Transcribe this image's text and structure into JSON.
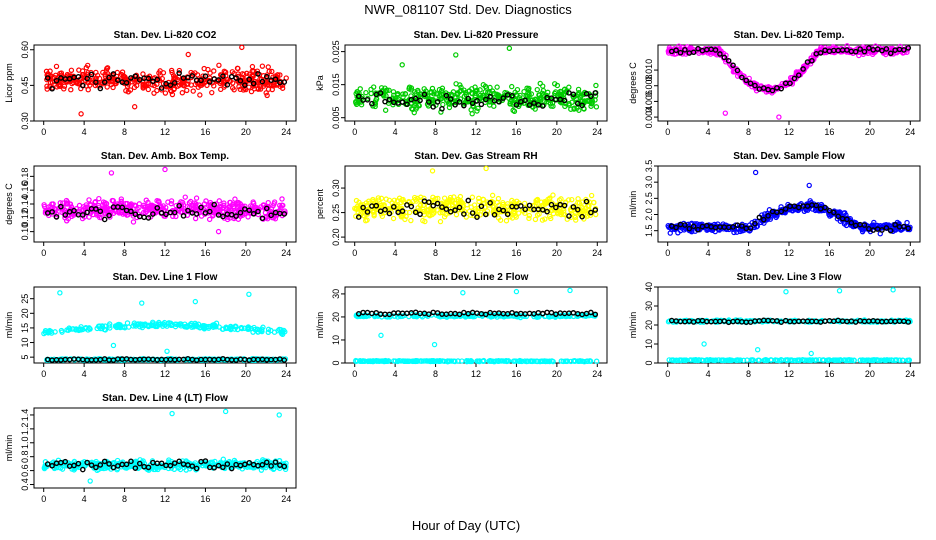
{
  "figure": {
    "title": "NWR_081107  Std. Dev. Diagnostics",
    "xlabel": "Hour of Day (UTC)"
  },
  "chart_data": [
    {
      "type": "scatter",
      "title": "Stan. Dev. Li-820 CO2",
      "ylabel": "Licor ppm",
      "color": "#ff0000",
      "xlim": [
        0,
        24
      ],
      "xticks": [
        "0",
        "4",
        "8",
        "12",
        "16",
        "20",
        "24"
      ],
      "ylim": [
        0.3,
        0.62
      ],
      "yticks": [
        "0.30",
        "0.45",
        "0.60"
      ],
      "pattern": {
        "kind": "band",
        "center": 0.47,
        "spread": 0.07,
        "outliers": [
          0.33,
          0.36,
          0.58,
          0.61
        ]
      },
      "black_series": {
        "center": 0.47,
        "spread": 0.04
      }
    },
    {
      "type": "scatter",
      "title": "Stan. Dev. Li-820 Pressure",
      "ylabel": "kPa",
      "color": "#00cc00",
      "xlim": [
        0,
        24
      ],
      "xticks": [
        "0",
        "4",
        "8",
        "12",
        "16",
        "20",
        "24"
      ],
      "ylim": [
        0.004,
        0.027
      ],
      "yticks": [
        "0.005",
        "0.015",
        "0.025"
      ],
      "pattern": {
        "kind": "band",
        "center": 0.011,
        "spread": 0.005,
        "outliers": [
          0.021,
          0.024,
          0.026
        ]
      },
      "black_series": {
        "center": 0.01,
        "spread": 0.003
      }
    },
    {
      "type": "scatter",
      "title": "Stan. Dev. Li-820 Temp.",
      "ylabel": "degrees C",
      "color": "#ff00ff",
      "xlim": [
        0,
        24
      ],
      "xticks": [
        "0",
        "4",
        "8",
        "12",
        "16",
        "20",
        "24"
      ],
      "ylim": [
        0.0035,
        0.0132
      ],
      "yticks": [
        "0.004",
        "0.006",
        "0.008",
        "0.010"
      ],
      "pattern": {
        "kind": "valley",
        "high": 0.0125,
        "low": 0.0075,
        "valley_start": 5,
        "valley_end": 15,
        "spread": 0.0007,
        "outliers": [
          0.0045,
          0.004
        ]
      },
      "black_series": {
        "spread": 0.0004
      }
    },
    {
      "type": "scatter",
      "title": "Stan. Dev. Amb. Box Temp.",
      "ylabel": "degrees C",
      "color": "#ff00ff",
      "xlim": [
        0,
        24
      ],
      "xticks": [
        "0",
        "4",
        "8",
        "12",
        "16",
        "20",
        "24"
      ],
      "ylim": [
        0.085,
        0.195
      ],
      "yticks": [
        "0.10",
        "0.12",
        "0.14",
        "0.16",
        "0.18"
      ],
      "pattern": {
        "kind": "band",
        "center": 0.132,
        "spread": 0.02,
        "outliers": [
          0.185,
          0.19,
          0.1
        ]
      },
      "black_series": {
        "center": 0.128,
        "spread": 0.012
      }
    },
    {
      "type": "scatter",
      "title": "Stan. Dev. Gas Stream RH",
      "ylabel": "percent",
      "color": "#ffff00",
      "xlim": [
        0,
        24
      ],
      "xticks": [
        "0",
        "4",
        "8",
        "12",
        "16",
        "20",
        "24"
      ],
      "ylim": [
        0.19,
        0.345
      ],
      "yticks": [
        "0.20",
        "0.25",
        "0.30"
      ],
      "pattern": {
        "kind": "band",
        "center": 0.26,
        "spread": 0.035,
        "outliers": [
          0.335,
          0.34
        ]
      },
      "black_series": {
        "center": 0.26,
        "spread": 0.022
      }
    },
    {
      "type": "scatter",
      "title": "Stan. Dev. Sample Flow",
      "ylabel": "ml/min",
      "color": "#0000ff",
      "xlim": [
        0,
        24
      ],
      "xticks": [
        "0",
        "4",
        "8",
        "12",
        "16",
        "20",
        "24"
      ],
      "ylim": [
        1.15,
        3.5
      ],
      "yticks": [
        "1.5",
        "2.0",
        "2.5",
        "3.0",
        "3.5"
      ],
      "pattern": {
        "kind": "hump",
        "base": 1.6,
        "peak": 2.25,
        "hump_start": 8,
        "hump_end": 19,
        "spread": 0.22,
        "outliers": [
          3.3,
          2.9
        ]
      },
      "black_series": {
        "spread": 0.12
      }
    },
    {
      "type": "scatter",
      "title": "Stan. Dev. Line 1 Flow",
      "ylabel": "ml/min",
      "color": "#00ffff",
      "xlim": [
        0,
        24
      ],
      "xticks": [
        "0",
        "4",
        "8",
        "12",
        "16",
        "20",
        "24"
      ],
      "ylim": [
        3,
        29
      ],
      "yticks": [
        "5",
        "10",
        "15",
        "20",
        "25"
      ],
      "pattern": {
        "kind": "two_band",
        "upper": 13.5,
        "upper_bump": 2.5,
        "upper_spread": 1.3,
        "lower": 4.2,
        "lower_spread": 0.4,
        "outliers": [
          23.5,
          24,
          26.5,
          27,
          9,
          7
        ]
      },
      "black_series": {
        "center": 4.2,
        "spread": 0.3
      }
    },
    {
      "type": "scatter",
      "title": "Stan. Dev. Line 2 Flow",
      "ylabel": "ml/min",
      "color": "#00ffff",
      "xlim": [
        0,
        24
      ],
      "xticks": [
        "0",
        "4",
        "8",
        "12",
        "16",
        "20",
        "24"
      ],
      "ylim": [
        0,
        33
      ],
      "yticks": [
        "0",
        "10",
        "20",
        "30"
      ],
      "pattern": {
        "kind": "two_band",
        "upper": 20.5,
        "upper_bump": 0,
        "upper_spread": 0.9,
        "lower": 0.8,
        "lower_spread": 0.3,
        "outliers": [
          30.5,
          31,
          31.5,
          12,
          8
        ]
      },
      "black_series": {
        "center": 21.5,
        "spread": 0.6
      }
    },
    {
      "type": "scatter",
      "title": "Stan. Dev. Line 3 Flow",
      "ylabel": "ml/min",
      "color": "#00ffff",
      "xlim": [
        0,
        24
      ],
      "xticks": [
        "0",
        "4",
        "8",
        "12",
        "16",
        "20",
        "24"
      ],
      "ylim": [
        0,
        40
      ],
      "yticks": [
        "0",
        "10",
        "20",
        "30",
        "40"
      ],
      "pattern": {
        "kind": "two_band",
        "upper": 22,
        "upper_bump": 0,
        "upper_spread": 0.8,
        "lower": 1.5,
        "lower_spread": 0.3,
        "outliers": [
          37.5,
          38,
          38.5,
          10,
          7,
          5
        ]
      },
      "black_series": {
        "center": 22,
        "spread": 0.6
      }
    },
    {
      "type": "scatter",
      "title": "Stan. Dev. Line 4 (LT) Flow",
      "ylabel": "ml/min",
      "color": "#00ffff",
      "xlim": [
        0,
        24
      ],
      "xticks": [
        "0",
        "4",
        "8",
        "12",
        "16",
        "20",
        "24"
      ],
      "ylim": [
        0.35,
        1.5
      ],
      "yticks": [
        "0.4",
        "0.6",
        "0.8",
        "1.0",
        "1.2",
        "1.4"
      ],
      "pattern": {
        "kind": "band",
        "center": 0.68,
        "spread": 0.09,
        "outliers": [
          1.42,
          1.45,
          1.4,
          0.45
        ]
      },
      "black_series": {
        "center": 0.68,
        "spread": 0.07
      }
    }
  ]
}
